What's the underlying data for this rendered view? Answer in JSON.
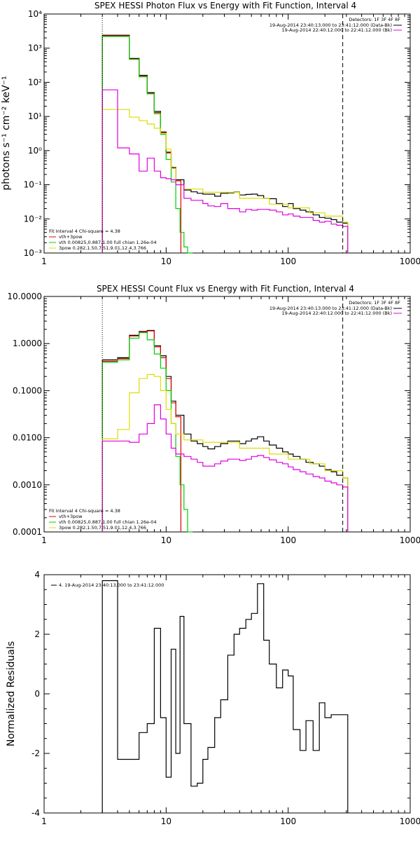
{
  "chart_data": [
    {
      "type": "line",
      "title": "SPEX HESSI Photon Flux vs Energy with Fit Function, Interval 4",
      "ylabel": "photons s⁻¹ cm⁻² keV⁻¹",
      "xlabel": "",
      "xscale": "log",
      "yscale": "log",
      "xlim": [
        1,
        1000
      ],
      "ylim": [
        0.001,
        10000
      ],
      "xticks": [
        "1",
        "10",
        "100",
        "1000"
      ],
      "yticks": [
        "10⁻³",
        "10⁻²",
        "10⁻¹",
        "10⁰",
        "10¹",
        "10²",
        "10³",
        "10⁴"
      ],
      "yticks_values": [
        0.001,
        0.01,
        0.1,
        1,
        10,
        100,
        1000,
        10000
      ],
      "vlines": [
        {
          "x": 3,
          "style": "dotted"
        },
        {
          "x": 280,
          "style": "dashed"
        }
      ],
      "legend_header": {
        "line1": "Detectors: 1F 3F 4F 8F",
        "line2": "19-Aug-2014 23:40:13.000 to 23:41:12.000 (Data-Bk)",
        "line3": "19-Aug-2014 22:40:12.000 to 22:41:12.000 (Bk)"
      },
      "fit_legend": {
        "line1": "Fit Interval  4    Chi-square = 4.38",
        "line2": "vth+3pow",
        "line3": "vth 0.00825,0.887,1.00   full chian 1.26e-04",
        "line4": "3pow 0.282,1.50,7.51,9.01,12.4,3.766"
      },
      "series": [
        {
          "color": "#000000",
          "x": [
            3,
            4,
            5,
            6,
            7,
            8,
            9,
            10,
            11,
            12,
            14,
            16,
            18,
            20,
            22,
            25,
            28,
            32,
            36,
            40,
            45,
            50,
            56,
            63,
            70,
            80,
            90,
            100,
            110,
            125,
            140,
            160,
            180,
            200,
            225,
            250,
            280
          ],
          "y": [
            2400.0,
            2400.0,
            500,
            160,
            50,
            14,
            3.5,
            0.9,
            0.32,
            0.14,
            0.07,
            0.062,
            0.056,
            0.053,
            0.053,
            0.046,
            0.056,
            0.058,
            0.061,
            0.05,
            0.052,
            0.053,
            0.048,
            0.04,
            0.039,
            0.028,
            0.023,
            0.028,
            0.02,
            0.018,
            0.016,
            0.013,
            0.011,
            0.0105,
            0.0095,
            0.008,
            0.0075
          ]
        },
        {
          "color": "#e00000",
          "x": [
            3,
            4,
            5,
            6,
            7,
            8,
            9,
            10,
            11,
            12
          ],
          "y": [
            2300.0,
            2300.0,
            480,
            150,
            48,
            13,
            3.3,
            0.85,
            0.3,
            0.13
          ]
        },
        {
          "color": "#00d000",
          "x": [
            3,
            4,
            5,
            6,
            7,
            8,
            9,
            10,
            11,
            12,
            13,
            14,
            15
          ],
          "y": [
            2200.0,
            2200.0,
            470,
            145,
            46,
            12,
            3.0,
            0.55,
            0.12,
            0.02,
            0.004,
            0.0015,
            0.001
          ]
        },
        {
          "color": "#dddd00",
          "x": [
            3,
            4,
            5,
            6,
            7,
            8,
            9,
            10,
            11,
            12,
            14,
            20,
            40,
            70,
            100,
            150,
            200,
            280
          ],
          "y": [
            16,
            16,
            9.5,
            7.5,
            6,
            4.5,
            3.2,
            1.1,
            0.3,
            0.1,
            0.075,
            0.06,
            0.04,
            0.027,
            0.021,
            0.015,
            0.012,
            0.008
          ]
        },
        {
          "color": "#e000e0",
          "x": [
            3,
            4,
            5,
            6,
            7,
            8,
            9,
            10,
            11,
            12,
            14,
            16,
            18,
            20,
            22,
            25,
            28,
            32,
            36,
            40,
            45,
            50,
            56,
            63,
            70,
            80,
            90,
            100,
            110,
            125,
            140,
            160,
            180,
            200,
            225,
            250,
            280
          ],
          "y": [
            60,
            1.2,
            0.8,
            0.25,
            0.6,
            0.25,
            0.16,
            0.15,
            0.14,
            0.1,
            0.04,
            0.035,
            0.035,
            0.028,
            0.024,
            0.023,
            0.028,
            0.02,
            0.02,
            0.016,
            0.019,
            0.018,
            0.019,
            0.019,
            0.018,
            0.016,
            0.013,
            0.014,
            0.012,
            0.011,
            0.011,
            0.009,
            0.008,
            0.0085,
            0.007,
            0.0065,
            0.006
          ]
        }
      ]
    },
    {
      "type": "line",
      "title": "SPEX HESSI Count Flux vs Energy with Fit Function, Interval 4",
      "xlabel": "",
      "xscale": "log",
      "yscale": "log",
      "xlim": [
        1,
        1000
      ],
      "ylim": [
        0.0001,
        10
      ],
      "xticks": [
        "1",
        "10",
        "100",
        "1000"
      ],
      "yticks": [
        "0.0001",
        "0.0010",
        "0.0100",
        "0.1000",
        "1.0000",
        "10.0000"
      ],
      "yticks_values": [
        0.0001,
        0.001,
        0.01,
        0.1,
        1,
        10
      ],
      "vlines": [
        {
          "x": 3,
          "style": "dotted"
        },
        {
          "x": 280,
          "style": "dashed"
        }
      ],
      "legend_header": {
        "line1": "Detectors: 1F 3F 4F 8F",
        "line2": "19-Aug-2014 23:40:13.000 to 23:41:12.000 (Data-Bk)",
        "line3": "19-Aug-2014 22:40:12.000 to 22:41:12.000 (Bk)"
      },
      "fit_legend": {
        "line1": "Fit Interval  4    Chi-square = 4.38",
        "line2": "vth+3pow",
        "line3": "vth 0.00825,0.887,1.00   full chian 1.26e-04",
        "line4": "3pow 0.282,1.50,7.51,9.01,12.4,3.766"
      },
      "series": [
        {
          "color": "#000000",
          "x": [
            3,
            4,
            5,
            6,
            7,
            8,
            9,
            10,
            11,
            12,
            14,
            16,
            18,
            20,
            22,
            25,
            28,
            32,
            36,
            40,
            45,
            50,
            56,
            63,
            70,
            80,
            90,
            100,
            110,
            125,
            140,
            160,
            180,
            200,
            225,
            250,
            280
          ],
          "y": [
            0.45,
            0.5,
            1.5,
            1.8,
            1.9,
            0.9,
            0.55,
            0.2,
            0.06,
            0.03,
            0.012,
            0.0085,
            0.0075,
            0.0065,
            0.0058,
            0.0065,
            0.0075,
            0.0085,
            0.0085,
            0.0075,
            0.0085,
            0.0095,
            0.0105,
            0.0085,
            0.007,
            0.006,
            0.005,
            0.0045,
            0.004,
            0.0035,
            0.003,
            0.0028,
            0.0025,
            0.0021,
            0.0019,
            0.0016,
            0.0014
          ]
        },
        {
          "color": "#e00000",
          "x": [
            3,
            4,
            5,
            6,
            7,
            8,
            9,
            10,
            11,
            12
          ],
          "y": [
            0.42,
            0.48,
            1.45,
            1.75,
            1.85,
            0.85,
            0.5,
            0.18,
            0.055,
            0.028
          ]
        },
        {
          "color": "#00d000",
          "x": [
            3,
            4,
            5,
            6,
            7,
            8,
            9,
            10,
            11,
            12,
            13,
            14,
            15
          ],
          "y": [
            0.4,
            0.45,
            1.3,
            1.7,
            1.2,
            0.6,
            0.3,
            0.1,
            0.02,
            0.004,
            0.001,
            0.0003,
            0.0001
          ]
        },
        {
          "color": "#dddd00",
          "x": [
            3,
            4,
            5,
            6,
            7,
            8,
            9,
            10,
            11,
            12,
            14,
            20,
            40,
            70,
            100,
            150,
            200,
            280
          ],
          "y": [
            0.0095,
            0.015,
            0.09,
            0.18,
            0.22,
            0.2,
            0.1,
            0.04,
            0.02,
            0.012,
            0.009,
            0.008,
            0.006,
            0.0045,
            0.0035,
            0.0028,
            0.002,
            0.0014
          ]
        },
        {
          "color": "#e000e0",
          "x": [
            3,
            4,
            5,
            6,
            7,
            8,
            9,
            10,
            11,
            12,
            14,
            16,
            18,
            20,
            22,
            25,
            28,
            32,
            36,
            40,
            45,
            50,
            56,
            63,
            70,
            80,
            90,
            100,
            110,
            125,
            140,
            160,
            180,
            200,
            225,
            250,
            280
          ],
          "y": [
            0.0085,
            0.0085,
            0.008,
            0.012,
            0.02,
            0.05,
            0.025,
            0.012,
            0.006,
            0.0045,
            0.004,
            0.0035,
            0.003,
            0.0025,
            0.0025,
            0.0028,
            0.0032,
            0.0035,
            0.0035,
            0.0033,
            0.0035,
            0.004,
            0.0042,
            0.0038,
            0.0034,
            0.003,
            0.0028,
            0.0024,
            0.0021,
            0.0019,
            0.0017,
            0.0015,
            0.0014,
            0.0012,
            0.0011,
            0.001,
            0.0009
          ]
        }
      ]
    },
    {
      "type": "line",
      "title": "",
      "ylabel": "Normalized Residuals",
      "xlabel": "",
      "xscale": "log",
      "yscale": "linear",
      "xlim": [
        1,
        1000
      ],
      "ylim": [
        -4,
        4
      ],
      "xticks": [
        "1",
        "10",
        "100",
        "1000"
      ],
      "yticks": [
        "-4",
        "-2",
        "0",
        "2",
        "4"
      ],
      "yticks_values": [
        -4,
        -2,
        0,
        2,
        4
      ],
      "legend": "4. 19-Aug-2014 23:40:13.000 to 23:41:12.000",
      "series": [
        {
          "color": "#000000",
          "x": [
            3,
            4,
            5,
            6,
            7,
            8,
            9,
            10,
            11,
            12,
            13,
            14,
            16,
            18,
            20,
            22,
            25,
            28,
            32,
            36,
            40,
            45,
            50,
            56,
            63,
            70,
            80,
            90,
            100,
            110,
            125,
            140,
            160,
            180,
            200,
            225,
            250,
            280
          ],
          "y": [
            3.8,
            -2.2,
            -2.2,
            -1.3,
            -1.0,
            2.2,
            -0.8,
            -2.8,
            1.5,
            -2.0,
            2.6,
            -1.0,
            -3.1,
            -3.0,
            -2.2,
            -1.8,
            -0.8,
            -0.2,
            1.3,
            2.0,
            2.2,
            2.5,
            2.7,
            3.7,
            1.8,
            1.0,
            0.2,
            0.8,
            0.6,
            -1.2,
            -1.9,
            -0.9,
            -1.9,
            -0.3,
            -0.8,
            -0.7,
            -0.7,
            -0.7
          ]
        }
      ]
    }
  ]
}
